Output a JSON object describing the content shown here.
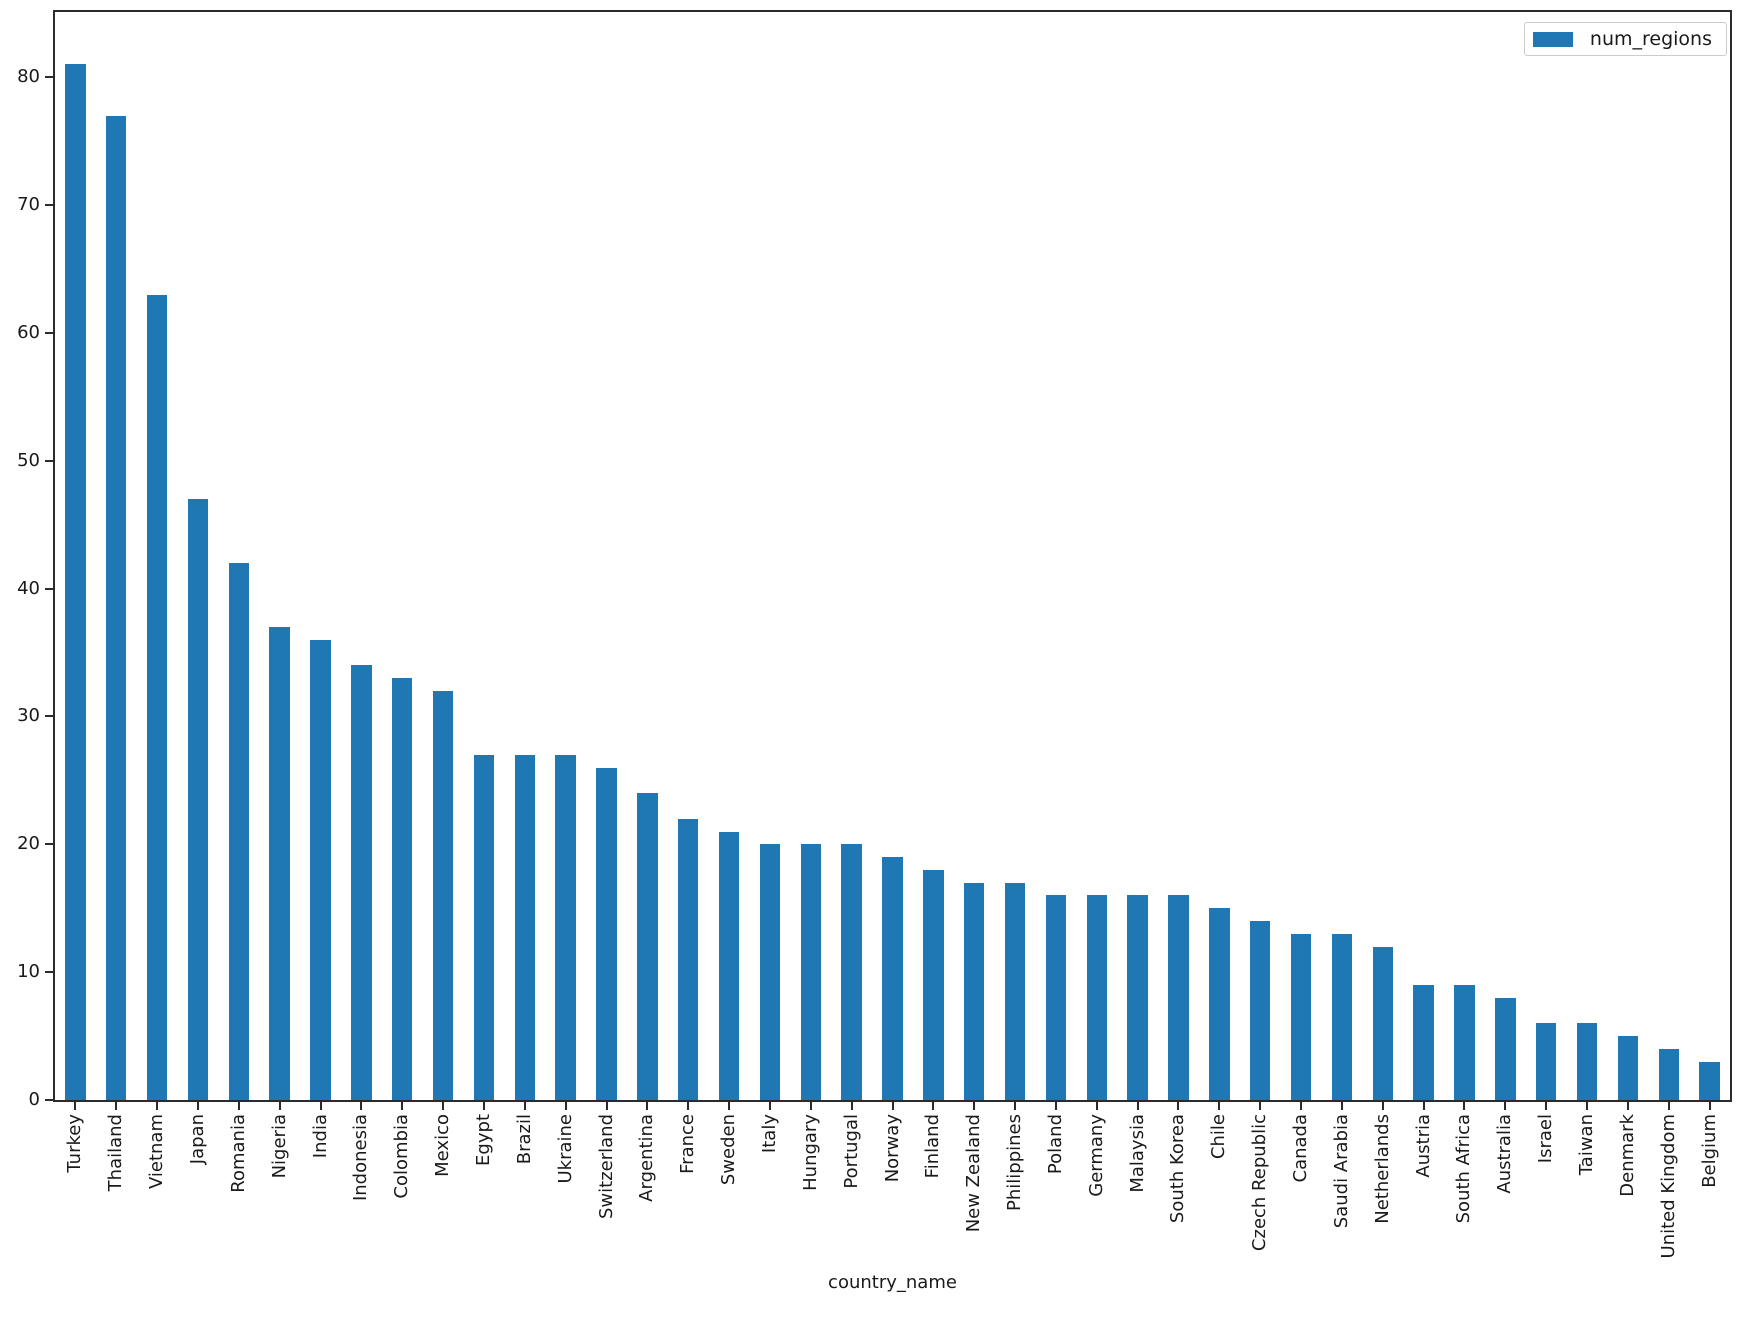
{
  "chart_data": {
    "type": "bar",
    "title": "",
    "xlabel": "country_name",
    "ylabel": "",
    "categories": [
      "Turkey",
      "Thailand",
      "Vietnam",
      "Japan",
      "Romania",
      "Nigeria",
      "India",
      "Indonesia",
      "Colombia",
      "Mexico",
      "Egypt",
      "Brazil",
      "Ukraine",
      "Switzerland",
      "Argentina",
      "France",
      "Sweden",
      "Italy",
      "Hungary",
      "Portugal",
      "Norway",
      "Finland",
      "New Zealand",
      "Philippines",
      "Poland",
      "Germany",
      "Malaysia",
      "South Korea",
      "Chile",
      "Czech Republic",
      "Canada",
      "Saudi Arabia",
      "Netherlands",
      "Austria",
      "South Africa",
      "Australia",
      "Israel",
      "Taiwan",
      "Denmark",
      "United Kingdom",
      "Belgium"
    ],
    "series": [
      {
        "name": "num_regions",
        "values": [
          81,
          77,
          63,
          47,
          42,
          37,
          36,
          34,
          33,
          32,
          27,
          27,
          27,
          26,
          24,
          22,
          21,
          20,
          20,
          20,
          19,
          18,
          17,
          17,
          16,
          16,
          16,
          16,
          15,
          14,
          13,
          13,
          12,
          9,
          9,
          8,
          6,
          6,
          5,
          4,
          3
        ]
      }
    ],
    "ylim": [
      0,
      85.1
    ],
    "yticks": [
      0,
      10,
      20,
      30,
      40,
      50,
      60,
      70,
      80
    ],
    "grid": false,
    "legend_position": "upper right",
    "bar_color": "#1f77b4"
  },
  "legend": {
    "label": "num_regions",
    "swatch_color": "#1f77b4"
  },
  "axes": {
    "x_title": "country_name"
  },
  "colors": {
    "bar": "#1f77b4",
    "spine": "#2b2b2b",
    "text": "#1a1a1a",
    "legend_border": "#cccccc",
    "background": "#ffffff"
  }
}
